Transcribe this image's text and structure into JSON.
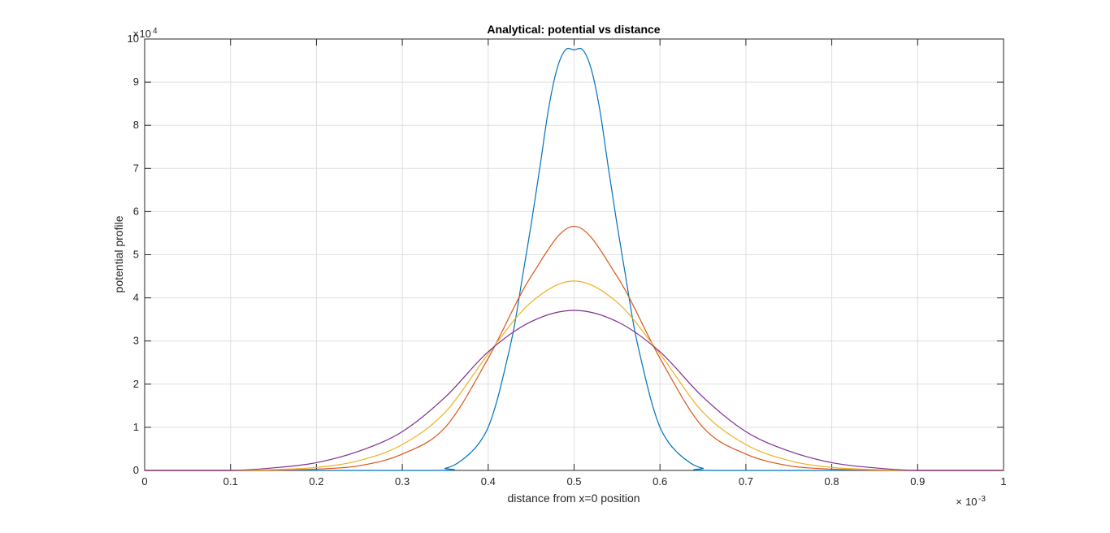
{
  "chart_data": {
    "type": "line",
    "title": "Analytical: potential vs distance",
    "xlabel": "distance from x=0 position",
    "ylabel": "potential profile",
    "x_multiplier_base": "10",
    "x_multiplier_exponent": "-3",
    "y_multiplier_base": "10",
    "y_multiplier_exponent": "4",
    "xlim": [
      0,
      0.001
    ],
    "ylim": [
      0,
      100000
    ],
    "x_ticks": [
      0,
      0.0001,
      0.0002,
      0.0003,
      0.0004,
      0.0005,
      0.0006,
      0.0007,
      0.0008,
      0.0009,
      0.001
    ],
    "x_tick_labels": [
      "0",
      "0.1",
      "0.2",
      "0.3",
      "0.4",
      "0.5",
      "0.6",
      "0.7",
      "0.8",
      "0.9",
      "1"
    ],
    "y_ticks": [
      0,
      10000,
      20000,
      30000,
      40000,
      50000,
      60000,
      70000,
      80000,
      90000,
      100000
    ],
    "y_tick_labels": [
      "0",
      "1",
      "2",
      "3",
      "4",
      "5",
      "6",
      "7",
      "8",
      "9",
      "10"
    ],
    "grid": true,
    "series": [
      {
        "color": "#0072BD",
        "x": [
          0,
          0.00033,
          0.00035,
          0.00036,
          0.00037,
          0.00038,
          0.00039,
          0.0004,
          0.00041,
          0.00042,
          0.00043,
          0.00044,
          0.00045,
          0.00046,
          0.00047,
          0.00048,
          0.00049,
          0.0005,
          0.00051,
          0.00052,
          0.00053,
          0.00054,
          0.00055,
          0.00056,
          0.00057,
          0.00058,
          0.00059,
          0.0006,
          0.00061,
          0.00062,
          0.00063,
          0.00064,
          0.00065,
          0.00067,
          0.001
        ],
        "y": [
          0,
          0,
          500,
          1200,
          2500,
          4200,
          6500,
          10000,
          16000,
          24000,
          33000,
          45000,
          57000,
          70000,
          83500,
          93000,
          97500,
          97500,
          97500,
          93000,
          83500,
          70000,
          57000,
          45000,
          33000,
          24000,
          16000,
          10000,
          6500,
          4200,
          2500,
          1200,
          500,
          0,
          0
        ]
      },
      {
        "color": "#D95319",
        "x": [
          0,
          0.0001,
          0.00015,
          0.0002,
          0.00025,
          0.0003,
          0.00035,
          0.0004,
          0.00045,
          0.0005,
          0.00055,
          0.0006,
          0.00065,
          0.0007,
          0.00075,
          0.0008,
          0.00085,
          0.0009,
          0.001
        ],
        "y": [
          0,
          0,
          50,
          300,
          1100,
          3800,
          10000,
          26000,
          45000,
          56600,
          45000,
          26000,
          10000,
          3800,
          1100,
          300,
          50,
          0,
          0
        ]
      },
      {
        "color": "#EDB120",
        "x": [
          0,
          0.0001,
          0.00015,
          0.0002,
          0.00025,
          0.0003,
          0.00035,
          0.0004,
          0.00045,
          0.0005,
          0.00055,
          0.0006,
          0.00065,
          0.0007,
          0.00075,
          0.0008,
          0.00085,
          0.0009,
          0.001
        ],
        "y": [
          0,
          0,
          200,
          700,
          2300,
          6000,
          13500,
          27000,
          39000,
          43900,
          39000,
          27000,
          13500,
          6000,
          2300,
          700,
          200,
          0,
          0
        ]
      },
      {
        "color": "#7E2F8E",
        "x": [
          0,
          0.0001,
          0.00015,
          0.0002,
          0.00025,
          0.0003,
          0.00035,
          0.0004,
          0.00045,
          0.0005,
          0.00055,
          0.0006,
          0.00065,
          0.0007,
          0.00075,
          0.0008,
          0.00085,
          0.0009,
          0.001
        ],
        "y": [
          0,
          0,
          600,
          1800,
          4500,
          9000,
          17000,
          27500,
          34500,
          37100,
          34500,
          27500,
          17000,
          9000,
          4500,
          1800,
          600,
          0,
          0
        ]
      }
    ]
  }
}
